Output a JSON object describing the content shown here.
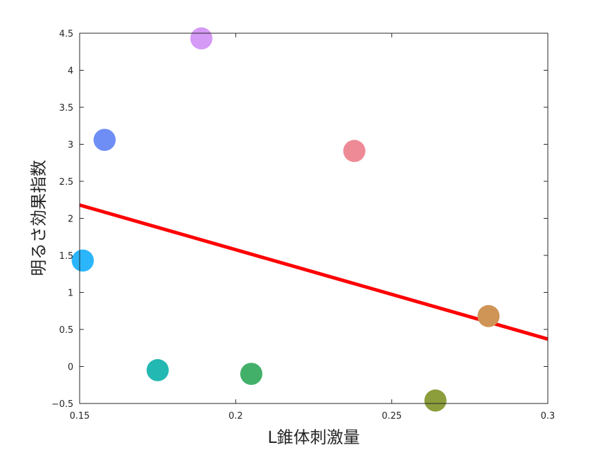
{
  "chart_data": {
    "type": "scatter",
    "title": "",
    "xlabel": "L錐体刺激量",
    "ylabel": "明るさ効果指数",
    "xlim": [
      0.15,
      0.3
    ],
    "ylim": [
      -0.5,
      4.5
    ],
    "xticks": [
      0.15,
      0.2,
      0.25,
      0.3
    ],
    "xtick_labels": [
      "0.15",
      "0.2",
      "0.25",
      "0.3"
    ],
    "yticks": [
      -0.5,
      0,
      0.5,
      1,
      1.5,
      2,
      2.5,
      3,
      3.5,
      4,
      4.5
    ],
    "ytick_labels": [
      "−0.5",
      "0",
      "0.5",
      "1",
      "1.5",
      "2",
      "2.5",
      "3",
      "3.5",
      "4",
      "4.5"
    ],
    "grid": false,
    "points": [
      {
        "x": 0.151,
        "y": 1.43,
        "color": "#2bb5fa"
      },
      {
        "x": 0.158,
        "y": 3.06,
        "color": "#6e8ef5"
      },
      {
        "x": 0.175,
        "y": -0.05,
        "color": "#24b8b2"
      },
      {
        "x": 0.189,
        "y": 4.43,
        "color": "#d59af5"
      },
      {
        "x": 0.205,
        "y": -0.1,
        "color": "#43b06a"
      },
      {
        "x": 0.238,
        "y": 2.91,
        "color": "#ee8a96"
      },
      {
        "x": 0.264,
        "y": -0.46,
        "color": "#8b9e3b"
      },
      {
        "x": 0.281,
        "y": 0.68,
        "color": "#cf9556"
      }
    ],
    "fit_line": {
      "x": [
        0.15,
        0.3
      ],
      "y": [
        2.18,
        0.37
      ],
      "color": "#ff0000"
    }
  }
}
